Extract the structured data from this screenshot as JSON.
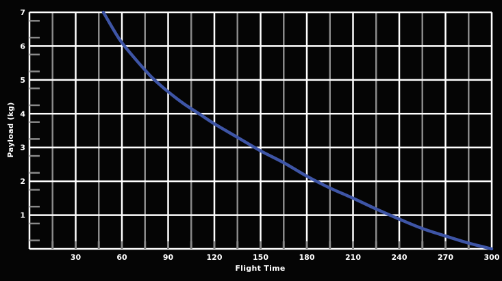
{
  "chart_data": {
    "type": "line",
    "title": "",
    "xlabel": "Flight Time",
    "ylabel": "Payload (kg)",
    "xlim": [
      0,
      300
    ],
    "ylim": [
      0,
      7
    ],
    "x_ticks": [
      30,
      60,
      90,
      120,
      150,
      180,
      210,
      240,
      270,
      300
    ],
    "y_ticks": [
      1,
      2,
      3,
      4,
      5,
      6,
      7
    ],
    "grid": true,
    "legend": "none",
    "colors": {
      "background": "#050505",
      "grid_major": "#ffffff",
      "grid_minor": "#8a8a8a",
      "line": "#3e55a6",
      "text": "#ffffff"
    },
    "series": [
      {
        "x": [
          48,
          55,
          60,
          70,
          80,
          90,
          100,
          110,
          120,
          135,
          150,
          165,
          180,
          195,
          210,
          225,
          240,
          255,
          270,
          285,
          300
        ],
        "y": [
          7.0,
          6.45,
          6.1,
          5.55,
          5.05,
          4.65,
          4.3,
          4.0,
          3.7,
          3.3,
          2.9,
          2.55,
          2.15,
          1.8,
          1.5,
          1.18,
          0.88,
          0.6,
          0.38,
          0.17,
          0.0
        ]
      }
    ]
  }
}
